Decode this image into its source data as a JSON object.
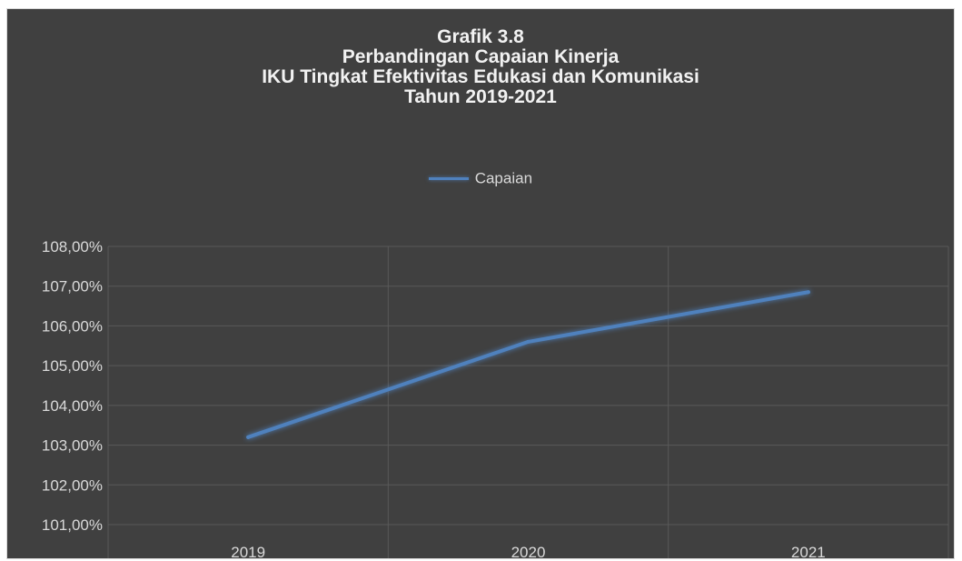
{
  "chart_data": {
    "type": "line",
    "title_lines": [
      "Grafik 3.8",
      "Perbandingan Capaian Kinerja",
      "IKU Tingkat Efektivitas Edukasi dan Komunikasi",
      "Tahun  2019-2021"
    ],
    "categories": [
      "2019",
      "2020",
      "2021"
    ],
    "series": [
      {
        "name": "Capaian",
        "values": [
          103.2,
          105.6,
          106.85
        ]
      }
    ],
    "ylim": [
      101,
      108
    ],
    "y_ticks": [
      101,
      102,
      103,
      104,
      105,
      106,
      107,
      108
    ],
    "y_tick_labels": [
      "101,00%",
      "102,00%",
      "103,00%",
      "104,00%",
      "105,00%",
      "106,00%",
      "107,00%",
      "108,00%"
    ],
    "grid": true,
    "legend_position": "top",
    "colors": {
      "background": "#404040",
      "series": "#4f81bd",
      "grid": "#595959",
      "text": "#d9d9d9",
      "title": "#f2f2f2"
    }
  }
}
